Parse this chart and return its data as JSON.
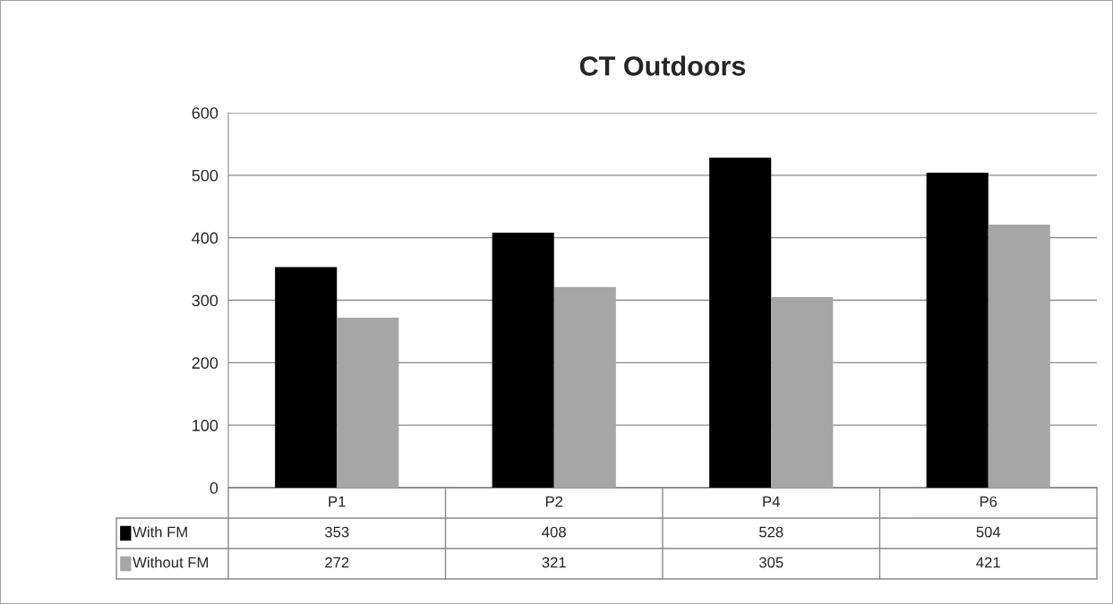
{
  "chart_data": {
    "type": "bar",
    "title": "CT Outdoors",
    "categories": [
      "P1",
      "P2",
      "P4",
      "P6"
    ],
    "series": [
      {
        "name": "With FM",
        "color": "#000000",
        "values": [
          353,
          408,
          528,
          504
        ]
      },
      {
        "name": "Without FM",
        "color": "#a6a6a6",
        "values": [
          272,
          321,
          305,
          421
        ]
      }
    ],
    "ylim": [
      0,
      600
    ],
    "yticks": [
      0,
      100,
      200,
      300,
      400,
      500,
      600
    ],
    "grid": "y",
    "legend": "bottom",
    "data_labels": true
  }
}
